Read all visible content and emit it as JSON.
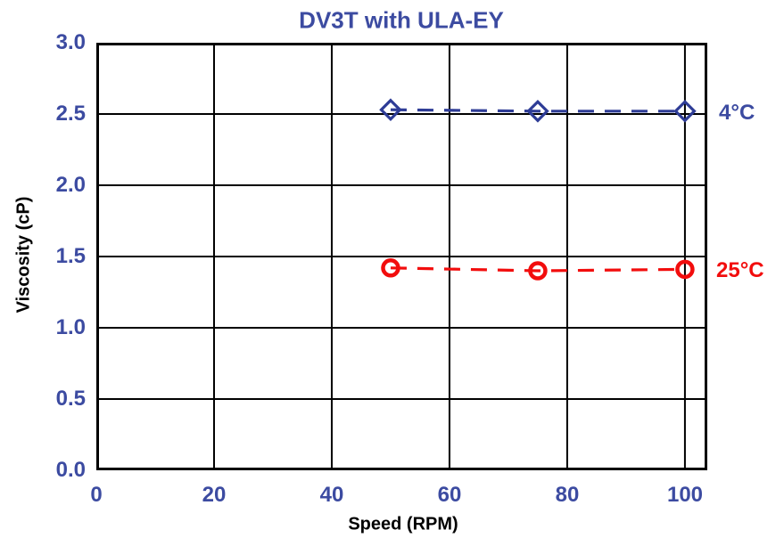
{
  "colors": {
    "text_blue": "#3c4ba1",
    "series_blue": "#2e3c96",
    "series_red": "#f20d0d",
    "axis_black": "#000000",
    "background": "#ffffff"
  },
  "chart_data": {
    "type": "line",
    "title": "DV3T with ULA-EY",
    "xlabel": "Speed (RPM)",
    "ylabel": "Viscosity (cP)",
    "grid": true,
    "x_axis": {
      "min": 0,
      "max": 103.8,
      "ticks": [
        0,
        20,
        40,
        60,
        80,
        100
      ],
      "tick_labels": [
        "0",
        "20",
        "40",
        "60",
        "80",
        "100"
      ]
    },
    "y_axis": {
      "min": 0,
      "max": 3.0,
      "ticks": [
        0.5,
        1.0,
        1.5,
        2.0,
        2.5
      ],
      "tick_labels_top_to_bottom": [
        "3.0",
        "2.5",
        "2.0",
        "1.5",
        "1.0",
        "0.5",
        "0.0"
      ]
    },
    "x": [
      50,
      75,
      100
    ],
    "series": [
      {
        "name": "4C",
        "label": "4°C",
        "marker": "diamond",
        "line_style": "dashed",
        "color": "#2e3c96",
        "values": [
          2.53,
          2.52,
          2.52
        ]
      },
      {
        "name": "25C",
        "label": "25°C",
        "marker": "circle",
        "line_style": "dashed",
        "color": "#f20d0d",
        "values": [
          1.42,
          1.4,
          1.41
        ]
      }
    ],
    "legend_position": "right-of-last-point"
  }
}
